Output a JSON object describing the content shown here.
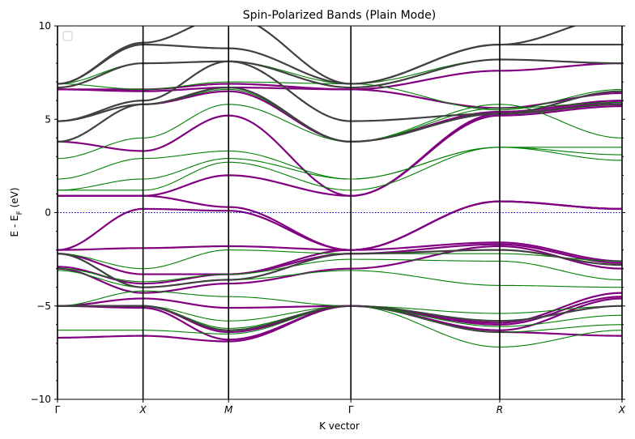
{
  "chart_data": {
    "type": "line",
    "title": "Spin-Polarized Bands (Plain Mode)",
    "xlabel": "K vector",
    "ylabel": "E - E_F (eV)",
    "ylabel_main": "E - E",
    "ylabel_sub": "F",
    "ylabel_unit": " (eV)",
    "ylim": [
      -10,
      10
    ],
    "xlim": [
      0,
      6.6
    ],
    "yticks": [
      -10,
      -5,
      0,
      5,
      10
    ],
    "ytick_labels": [
      "−10",
      "−5",
      "0",
      "5",
      "10"
    ],
    "kpoints": [
      {
        "label": "Γ",
        "x": 0.0
      },
      {
        "label": "X",
        "x": 1.0
      },
      {
        "label": "M",
        "x": 2.0
      },
      {
        "label": "Γ",
        "x": 3.43
      },
      {
        "label": "R",
        "x": 5.17
      },
      {
        "label": "X",
        "x": 6.6
      }
    ],
    "fermi_level": 0,
    "colors": {
      "spin_up": "#800080",
      "spin_down": "#008000",
      "overlap": "#404040",
      "fermi": "#0000cc"
    },
    "band_groups": [
      {
        "color": "#800080",
        "width": 2.2,
        "x": [
          0,
          1,
          2,
          3.43,
          5.17,
          6.6
        ],
        "bands": [
          [
            -6.7,
            -6.6,
            -6.9,
            -5.0,
            -6.4,
            -6.6
          ],
          [
            -5.0,
            -5.1,
            -6.8,
            -5.0,
            -6.3,
            -4.6
          ],
          [
            -5.0,
            -5.0,
            -6.4,
            -5.0,
            -6.0,
            -4.5
          ],
          [
            -5.0,
            -4.6,
            -5.1,
            -5.0,
            -5.9,
            -4.3
          ],
          [
            -3.0,
            -4.3,
            -3.8,
            -3.0,
            -1.8,
            -3.0
          ],
          [
            -2.9,
            -3.8,
            -3.3,
            -2.2,
            -1.7,
            -2.7
          ],
          [
            -2.2,
            -3.3,
            -3.3,
            -2.0,
            -1.6,
            -2.6
          ],
          [
            -2.0,
            -1.9,
            -1.8,
            -2.0,
            0.6,
            0.2
          ],
          [
            -2.0,
            0.2,
            0.1,
            -2.0,
            0.6,
            0.2
          ],
          [
            0.9,
            0.9,
            0.3,
            -2.0,
            0.6,
            0.2
          ],
          [
            0.9,
            0.9,
            2.0,
            0.9,
            5.2,
            5.7
          ],
          [
            3.8,
            3.3,
            5.2,
            0.9,
            5.3,
            5.9
          ],
          [
            3.8,
            5.8,
            6.5,
            3.8,
            5.4,
            6.0
          ],
          [
            6.6,
            6.5,
            6.7,
            6.6,
            5.6,
            6.4
          ],
          [
            6.6,
            6.6,
            6.9,
            6.6,
            7.6,
            8.0
          ]
        ]
      },
      {
        "color": "#008000",
        "width": 1.1,
        "x": [
          0,
          1,
          2,
          3.43,
          5.17,
          6.6
        ],
        "bands": [
          [
            -6.3,
            -6.3,
            -6.5,
            -5.0,
            -7.2,
            -6.3
          ],
          [
            -5.0,
            -5.0,
            -6.2,
            -5.0,
            -6.4,
            -6.0
          ],
          [
            -5.0,
            -5.0,
            -5.8,
            -5.0,
            -6.1,
            -5.5
          ],
          [
            -5.0,
            -4.2,
            -4.5,
            -5.0,
            -5.4,
            -5.0
          ],
          [
            -3.1,
            -4.0,
            -3.6,
            -3.1,
            -3.9,
            -4.0
          ],
          [
            -3.0,
            -3.7,
            -3.3,
            -2.5,
            -2.6,
            -3.6
          ],
          [
            -2.2,
            -3.0,
            -2.0,
            -2.2,
            -2.2,
            -2.6
          ],
          [
            1.2,
            1.2,
            2.7,
            1.2,
            3.5,
            2.8
          ],
          [
            1.2,
            1.8,
            2.9,
            1.8,
            3.5,
            3.1
          ],
          [
            1.8,
            2.9,
            3.3,
            1.8,
            3.5,
            3.5
          ],
          [
            2.9,
            4.0,
            5.8,
            3.8,
            5.8,
            4.0
          ],
          [
            3.8,
            5.8,
            6.6,
            3.8,
            5.6,
            5.9
          ],
          [
            6.9,
            6.6,
            7.0,
            6.9,
            5.5,
            6.6
          ],
          [
            6.9,
            8.0,
            8.1,
            6.9,
            8.2,
            8.0
          ]
        ]
      },
      {
        "color": "#404040",
        "width": 2.2,
        "x": [
          0,
          1,
          2,
          3.43,
          5.17,
          6.6
        ],
        "bands": [
          [
            -5.0,
            -5.0,
            -6.3,
            -5.0,
            -5.8,
            -5.0
          ],
          [
            -2.2,
            -4.0,
            -3.6,
            -2.2,
            -2.0,
            -2.8
          ],
          [
            4.9,
            5.8,
            6.7,
            3.8,
            5.3,
            5.8
          ],
          [
            4.9,
            6.0,
            8.1,
            4.9,
            5.3,
            6.5
          ],
          [
            6.7,
            8.0,
            8.1,
            6.7,
            8.2,
            8.0
          ],
          [
            6.9,
            9.0,
            8.8,
            6.9,
            9.0,
            9.0
          ],
          [
            6.9,
            9.1,
            10.5,
            6.9,
            9.0,
            10.5
          ]
        ]
      }
    ],
    "legend_position": "upper-left",
    "grid": false
  }
}
